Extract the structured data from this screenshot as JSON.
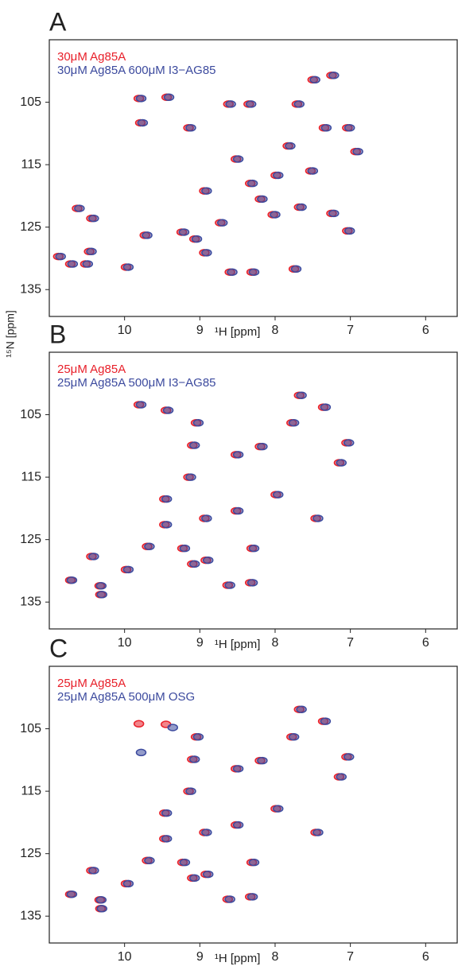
{
  "chart_data": [
    {
      "type": "scatter",
      "title": "A",
      "x_label": "¹H [ppm]",
      "y_label": "¹⁵N [ppm]",
      "xlim": [
        11,
        5.57
      ],
      "ylim": [
        95,
        139.3
      ],
      "xticks": [
        10,
        9,
        8,
        7,
        6
      ],
      "yticks": [
        105,
        115,
        125,
        135
      ],
      "series": [
        {
          "name": "30μM Ag85A",
          "color": "#e8202a",
          "x": [
            10.88,
            10.72,
            10.52,
            10.47,
            10.63,
            10.44,
            9.81,
            9.79,
            9.44,
            9.98,
            9.73,
            9.24,
            9.07,
            8.94,
            8.6,
            8.31,
            9.15,
            8.62,
            8.35,
            7.71,
            7.5,
            7.25,
            7.35,
            7.04,
            8.52,
            7.99,
            8.2,
            7.68,
            7.25,
            7.04,
            6.93,
            7.75,
            8.73,
            8.94,
            8.33,
            8.03,
            7.83,
            7.53
          ],
          "values": [
            129.7,
            130.9,
            130.9,
            128.9,
            122,
            123.6,
            104.4,
            108.3,
            104.2,
            131.4,
            126.3,
            125.8,
            126.9,
            129.1,
            132.2,
            132.2,
            109.1,
            105.3,
            105.3,
            105.3,
            101.4,
            100.7,
            109.1,
            109.1,
            114.1,
            116.7,
            120.5,
            121.8,
            122.8,
            125.6,
            112.9,
            131.7,
            124.3,
            119.2,
            118,
            123,
            112,
            116
          ]
        },
        {
          "name": "30μM Ag85A  600μM I3−AG85",
          "color": "#3c4a9e",
          "x": [
            10.85,
            10.69,
            10.49,
            10.44,
            10.6,
            10.41,
            9.78,
            9.76,
            9.41,
            9.95,
            9.7,
            9.21,
            9.04,
            8.91,
            8.57,
            8.28,
            9.12,
            8.59,
            8.32,
            7.68,
            7.47,
            7.22,
            7.32,
            7.01,
            8.49,
            7.96,
            8.17,
            7.65,
            7.22,
            7.01,
            6.9,
            7.72,
            8.7,
            8.91,
            8.3,
            8,
            7.8,
            7.5
          ],
          "values": [
            129.7,
            130.9,
            130.9,
            128.9,
            122,
            123.6,
            104.4,
            108.3,
            104.2,
            131.4,
            126.3,
            125.8,
            126.9,
            129.1,
            132.2,
            132.2,
            109.1,
            105.3,
            105.3,
            105.3,
            101.4,
            100.7,
            109.1,
            109.1,
            114.1,
            116.7,
            120.5,
            121.8,
            122.8,
            125.6,
            112.9,
            131.7,
            124.3,
            119.2,
            118,
            123,
            112,
            116
          ]
        }
      ]
    },
    {
      "type": "scatter",
      "title": "B",
      "x_label": "¹H [ppm]",
      "xlim": [
        11,
        5.57
      ],
      "ylim": [
        95,
        139.3
      ],
      "xticks": [
        10,
        9,
        8,
        7,
        6
      ],
      "yticks": [
        105,
        115,
        125,
        135
      ],
      "series": [
        {
          "name": "25μM Ag85A",
          "color": "#e8202a",
          "x": [
            10.72,
            10.44,
            10.33,
            10.32,
            9.98,
            9.81,
            9.45,
            9.05,
            9.1,
            9.15,
            9.47,
            9.47,
            9.7,
            9.23,
            9.1,
            8.92,
            8.63,
            8.33,
            8.52,
            8.2,
            7.78,
            7.68,
            7.36,
            7.15,
            7.05,
            8.52,
            7.99,
            7.46,
            8.31,
            8.94
          ],
          "values": [
            131.5,
            127.7,
            132.4,
            133.8,
            129.8,
            103.4,
            104.3,
            106.3,
            109.9,
            115,
            118.5,
            122.6,
            126.1,
            126.4,
            128.9,
            128.3,
            132.3,
            131.9,
            111.4,
            110.1,
            106.3,
            101.9,
            103.8,
            112.7,
            109.5,
            120.4,
            117.8,
            121.6,
            126.4,
            121.6
          ]
        },
        {
          "name": "25μM Ag85A  500μM I3−AG85",
          "color": "#3c4a9e",
          "x": [
            10.7,
            10.41,
            10.31,
            10.3,
            9.95,
            9.78,
            9.42,
            9.02,
            9.07,
            9.12,
            9.44,
            9.44,
            9.67,
            9.2,
            9.07,
            8.89,
            8.6,
            8.3,
            8.49,
            8.17,
            7.75,
            7.65,
            7.33,
            7.12,
            7.02,
            8.49,
            7.96,
            7.43,
            8.28,
            8.91
          ],
          "values": [
            131.5,
            127.7,
            132.4,
            133.8,
            129.8,
            103.4,
            104.3,
            106.3,
            109.9,
            115,
            118.5,
            122.6,
            126.1,
            126.4,
            128.9,
            128.3,
            132.3,
            131.9,
            111.4,
            110.1,
            106.3,
            101.9,
            103.8,
            112.7,
            109.5,
            120.4,
            117.8,
            121.6,
            126.4,
            121.6
          ]
        }
      ]
    },
    {
      "type": "scatter",
      "title": "C",
      "x_label": "¹H [ppm]",
      "xlim": [
        11,
        5.57
      ],
      "ylim": [
        95,
        139.3
      ],
      "xticks": [
        10,
        9,
        8,
        7,
        6
      ],
      "yticks": [
        105,
        115,
        125,
        135
      ],
      "series": [
        {
          "name": "25μM Ag85A",
          "color": "#e8202a",
          "x": [
            10.72,
            10.44,
            10.33,
            10.32,
            9.98,
            9.81,
            9.45,
            9.05,
            9.1,
            9.15,
            9.47,
            9.47,
            9.7,
            9.23,
            9.1,
            8.92,
            8.63,
            8.33,
            8.52,
            8.2,
            7.78,
            7.68,
            7.36,
            7.15,
            7.05,
            8.52,
            7.99,
            7.46,
            8.31,
            8.94
          ],
          "values": [
            131.5,
            127.7,
            132.4,
            133.8,
            129.8,
            104.2,
            104.3,
            106.3,
            109.9,
            115,
            118.5,
            122.6,
            126.1,
            126.4,
            128.9,
            128.3,
            132.3,
            131.9,
            111.4,
            110.1,
            106.3,
            101.9,
            103.8,
            112.7,
            109.5,
            120.4,
            117.8,
            121.6,
            126.4,
            121.6
          ]
        },
        {
          "name": "25μM Ag85A  500μM OSG",
          "color": "#3c4a9e",
          "x": [
            10.7,
            10.41,
            10.31,
            10.3,
            9.95,
            9.78,
            9.36,
            9.02,
            9.07,
            9.12,
            9.44,
            9.44,
            9.67,
            9.2,
            9.07,
            8.89,
            8.6,
            8.3,
            8.49,
            8.17,
            7.75,
            7.65,
            7.33,
            7.12,
            7.02,
            8.49,
            7.96,
            7.43,
            8.28,
            8.91
          ],
          "values": [
            131.5,
            127.7,
            132.4,
            133.8,
            129.8,
            108.8,
            104.8,
            106.3,
            109.9,
            115,
            118.5,
            122.6,
            126.1,
            126.4,
            128.9,
            128.3,
            132.3,
            131.9,
            111.4,
            110.1,
            106.3,
            101.9,
            103.8,
            112.7,
            109.5,
            120.4,
            117.8,
            121.6,
            126.4,
            121.6
          ]
        }
      ]
    }
  ]
}
